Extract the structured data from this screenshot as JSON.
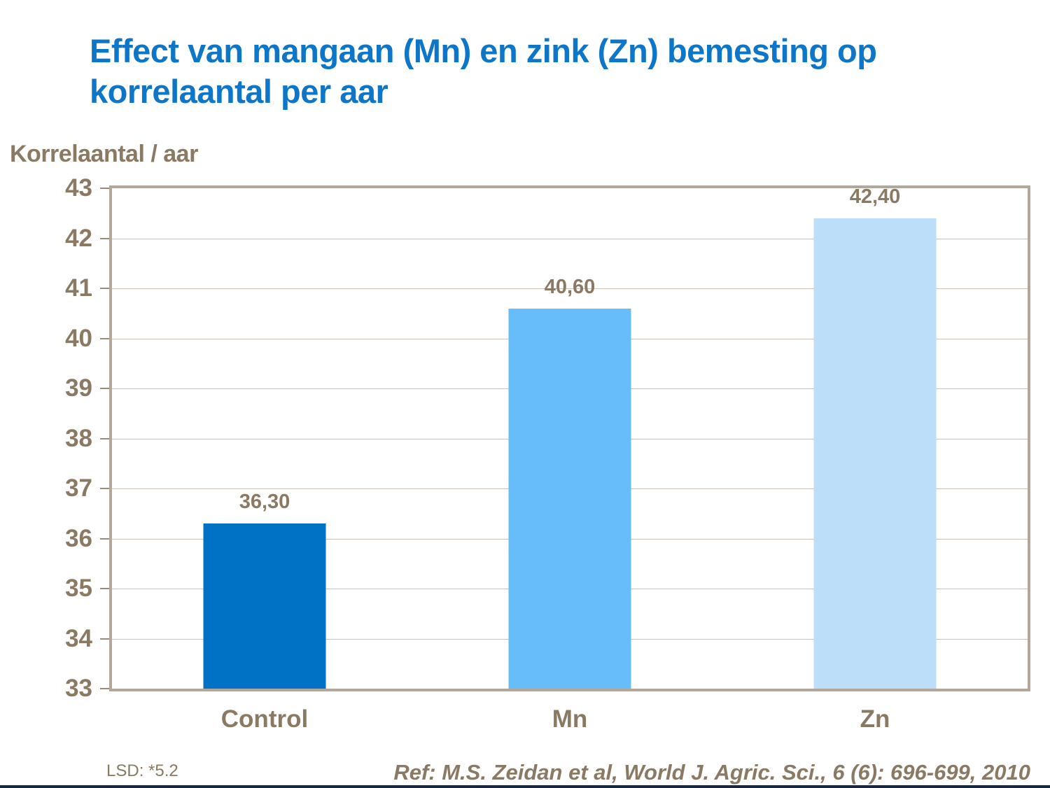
{
  "title": {
    "line1": "Effect van mangaan (Mn) en zink (Zn) bemesting op",
    "line2": "korrelaantal per aar"
  },
  "y_axis_title": "Korrelaantal / aar",
  "footnote": "LSD: *5.2",
  "reference": "Ref: M.S. Zeidan et al, World J. Agric. Sci., 6 (6): 696-699, 2010",
  "colors": {
    "title_blue": "#0D76C8",
    "text_brown": "#8A7963",
    "axis_border": "#B3A79A",
    "gridline": "#C9BFB2",
    "bottom_line": "#17293E"
  },
  "chart_data": {
    "type": "bar",
    "title": "Effect van mangaan (Mn) en zink (Zn) bemesting op korrelaantal per aar",
    "ylabel": "Korrelaantal / aar",
    "xlabel": "",
    "categories": [
      "Control",
      "Mn",
      "Zn"
    ],
    "values": [
      36.3,
      40.6,
      42.4
    ],
    "value_labels": [
      "36,30",
      "40,60",
      "42,40"
    ],
    "bar_colors": [
      "#0072C6",
      "#66BDFA",
      "#BDDEF8"
    ],
    "ylim": [
      33,
      43
    ],
    "yticks": [
      33,
      34,
      35,
      36,
      37,
      38,
      39,
      40,
      41,
      42,
      43
    ],
    "grid": true,
    "legend": false
  }
}
